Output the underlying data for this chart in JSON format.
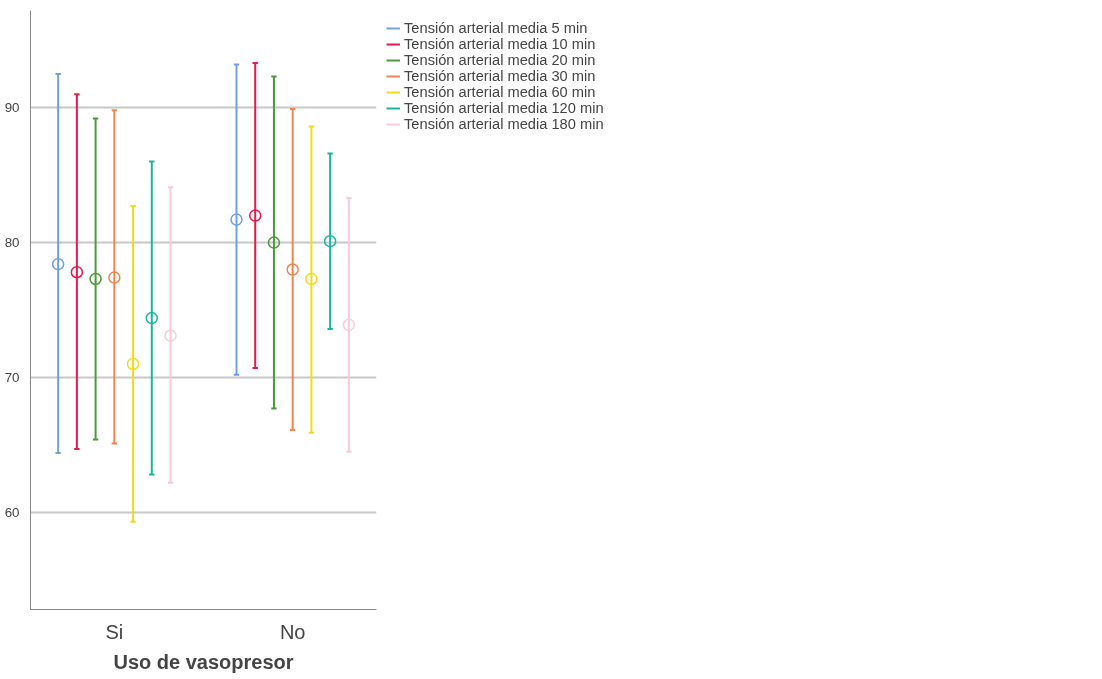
{
  "chart_data": {
    "type": "scatter",
    "xlabel": "Uso de vasopresor",
    "categories": [
      "Si",
      "No"
    ],
    "ylim": [
      52.8,
      97.2
    ],
    "yticks": [
      60,
      70,
      80,
      90
    ],
    "grid": "y",
    "marker": "circle",
    "legend": "top right",
    "series": [
      {
        "name": "Tensión arterial media 5 min",
        "color": "#6fa0e6",
        "values": [
          78.4,
          81.7
        ],
        "errors": [
          [
            64.4,
            92.5
          ],
          [
            70.2,
            93.2
          ]
        ]
      },
      {
        "name": "Tensión arterial media 10 min",
        "color": "#e8174c",
        "values": [
          77.8,
          82.0
        ],
        "errors": [
          [
            64.7,
            91.0
          ],
          [
            70.7,
            93.3
          ]
        ]
      },
      {
        "name": "Tensión arterial media 20 min",
        "color": "#4a9a3c",
        "values": [
          77.3,
          80.0
        ],
        "errors": [
          [
            65.4,
            89.2
          ],
          [
            67.7,
            92.3
          ]
        ]
      },
      {
        "name": "Tensión arterial media 30 min",
        "color": "#f5844c",
        "values": [
          77.4,
          78.0
        ],
        "errors": [
          [
            65.1,
            89.8
          ],
          [
            66.1,
            89.9
          ]
        ]
      },
      {
        "name": "Tensión arterial media 60 min",
        "color": "#f0dc1c",
        "values": [
          71.0,
          77.3
        ],
        "errors": [
          [
            59.3,
            82.7
          ],
          [
            65.9,
            88.6
          ]
        ]
      },
      {
        "name": "Tensión arterial media 120 min",
        "color": "#1ab5a0",
        "values": [
          74.4,
          80.1
        ],
        "errors": [
          [
            62.8,
            86.0
          ],
          [
            73.6,
            86.6
          ]
        ]
      },
      {
        "name": "Tensión arterial media 180 min",
        "color": "#fcc8dc",
        "values": [
          73.1,
          73.9
        ],
        "errors": [
          [
            62.2,
            84.1
          ],
          [
            64.5,
            83.3
          ]
        ]
      }
    ]
  }
}
